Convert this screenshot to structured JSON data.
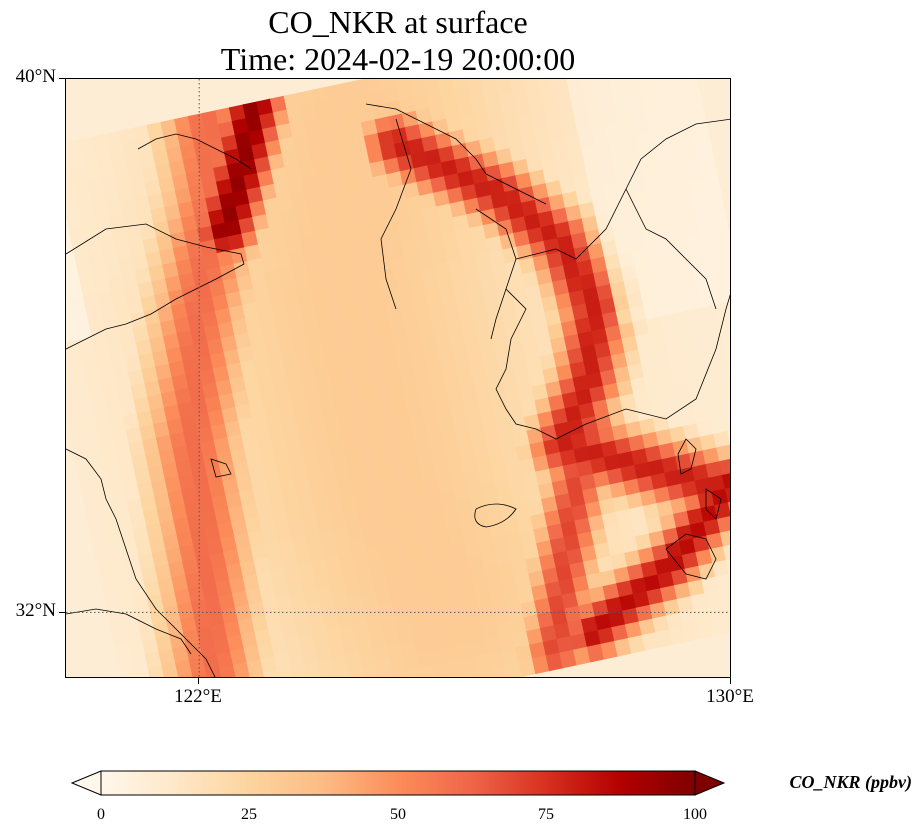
{
  "title": {
    "line1": "CO_NKR at surface",
    "line2": "Time: 2024-02-19 20:00:00"
  },
  "axes": {
    "y_ticks": [
      {
        "label": "40°N",
        "value": 40
      },
      {
        "label": "32°N",
        "value": 32
      }
    ],
    "x_ticks": [
      {
        "label": "122°E",
        "value": 122
      },
      {
        "label": "130°E",
        "value": 130
      }
    ],
    "lon_range": [
      120,
      130
    ],
    "lat_range": [
      31,
      40
    ],
    "gridlines": "dotted at 122°E and 32°N"
  },
  "colorbar": {
    "label": "CO_NKR (ppbv)",
    "ticks": [
      "0",
      "25",
      "50",
      "75",
      "100"
    ],
    "tick_values": [
      0,
      25,
      50,
      75,
      100
    ],
    "range": [
      0,
      100
    ],
    "extend": "both",
    "colormap": "OrRd",
    "stops": [
      "#fff7ec",
      "#fee8c8",
      "#fdd49e",
      "#fdbb84",
      "#fc8d59",
      "#ef6548",
      "#d7301f",
      "#b30000",
      "#7f0000"
    ]
  },
  "field": {
    "description_values": "CO concentration in ppbv over the Yellow Sea region",
    "background_ppbv": 8,
    "plumes": [
      {
        "name": "northern band",
        "ppbv": 95
      },
      {
        "name": "western coastal band",
        "ppbv": 60
      },
      {
        "name": "central sea",
        "ppbv": 32
      },
      {
        "name": "southern Korea arc",
        "ppbv": 80
      },
      {
        "name": "southeast band",
        "ppbv": 85
      },
      {
        "name": "south band",
        "ppbv": 70
      }
    ]
  }
}
